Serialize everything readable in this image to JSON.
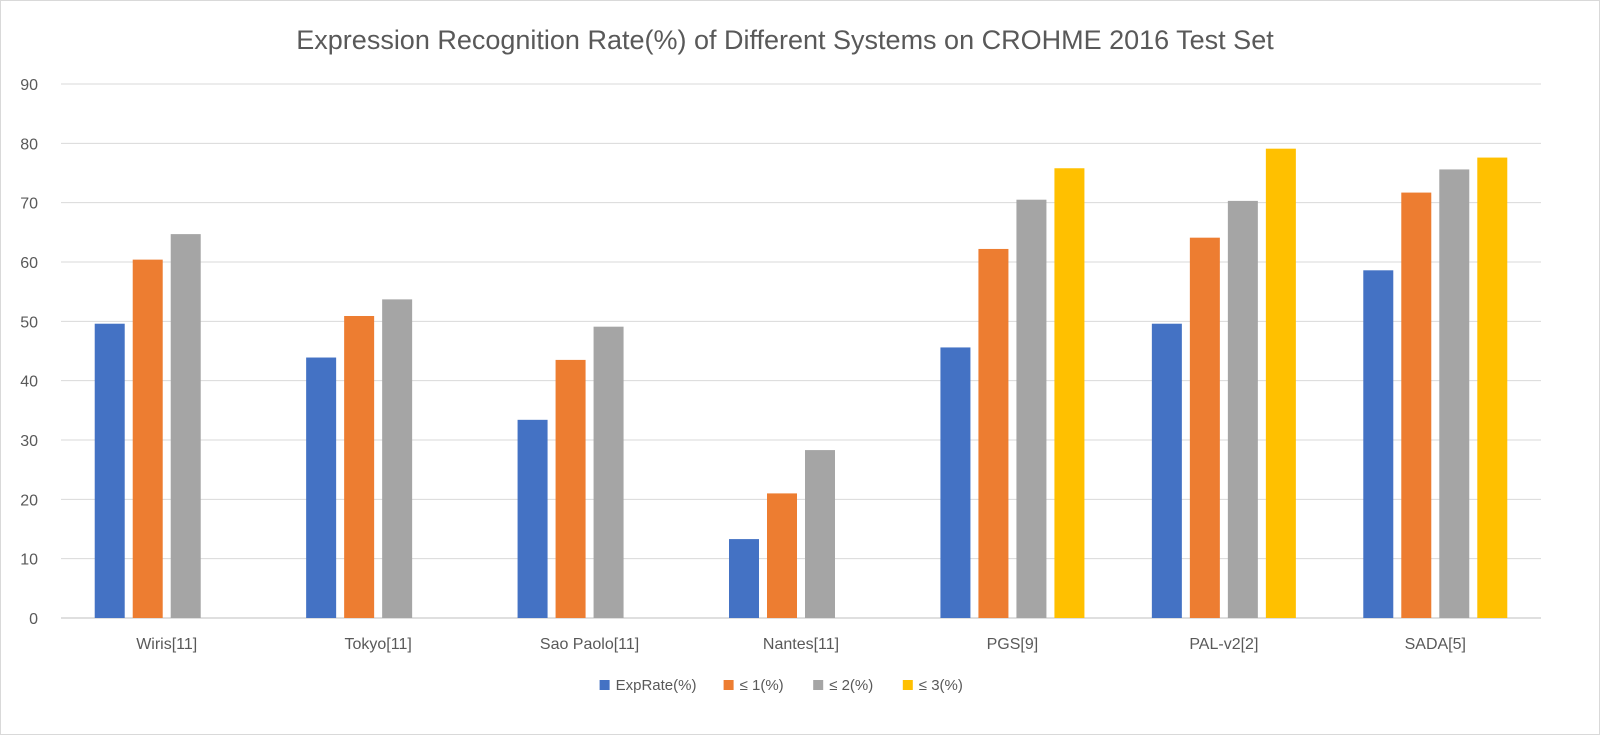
{
  "chart_data": {
    "type": "bar",
    "title": "Expression Recognition Rate(%) of Different Systems on CROHME 2016 Test Set",
    "categories": [
      "Wiris[11]",
      "Tokyo[11]",
      "Sao Paolo[11]",
      "Nantes[11]",
      "PGS[9]",
      "PAL-v2[2]",
      "SADA[5]"
    ],
    "series": [
      {
        "name": "ExpRate(%)",
        "color": "#4472C4",
        "values": [
          49.6,
          43.9,
          33.4,
          13.3,
          45.6,
          49.6,
          58.6
        ]
      },
      {
        "name": "≤ 1(%)",
        "color": "#ED7D31",
        "values": [
          60.4,
          50.9,
          43.5,
          21.0,
          62.2,
          64.1,
          71.7
        ]
      },
      {
        "name": "≤ 2(%)",
        "color": "#A5A5A5",
        "values": [
          64.7,
          53.7,
          49.1,
          28.3,
          70.5,
          70.3,
          75.6
        ]
      },
      {
        "name": "≤ 3(%)",
        "color": "#FFC000",
        "values": [
          null,
          null,
          null,
          null,
          75.8,
          79.1,
          77.6
        ]
      }
    ],
    "ylim": [
      0,
      90
    ],
    "yticks": [
      0,
      10,
      20,
      30,
      40,
      50,
      60,
      70,
      80,
      90
    ],
    "grid": true,
    "legend": "bottom"
  }
}
